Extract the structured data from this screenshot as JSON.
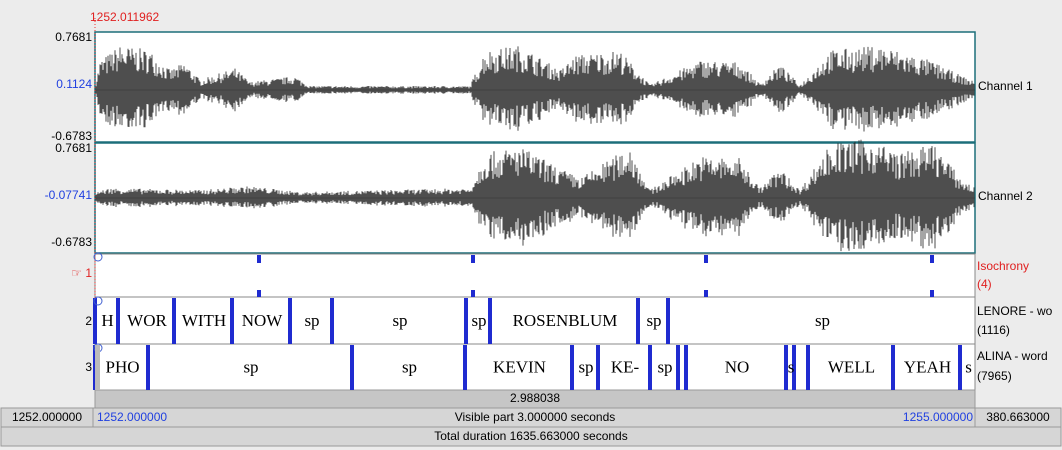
{
  "cursor_time": "1252.011962",
  "channels": [
    {
      "max": "0.7681",
      "mid": "0.1124",
      "min": "-0.6783",
      "name": "Channel 1"
    },
    {
      "max": "0.7681",
      "mid": "-0.07741",
      "min": "-0.6783",
      "name": "Channel 2"
    }
  ],
  "tiers": [
    {
      "number": "☞ 1",
      "name": "Isochrony",
      "count": "(4)"
    },
    {
      "number": "2",
      "name": "LENORE - wo",
      "count": "(1116)",
      "intervals": [
        "H",
        "WOR",
        "WITH",
        "NOW",
        "sp",
        "sp",
        "sp",
        "ROSENBLUM",
        "sp",
        "sp"
      ]
    },
    {
      "number": "3",
      "name": "ALINA - word",
      "count": "(7965)",
      "intervals": [
        "PHO",
        "sp",
        "sp",
        "KEVIN",
        "sp",
        "KE-",
        "sp",
        "NO",
        "s",
        "WELL",
        "YEAH",
        "s"
      ]
    }
  ],
  "selection_duration": "2.988038",
  "window": {
    "left_total": "1252.000000",
    "start": "1252.000000",
    "visible": "Visible part 3.000000 seconds",
    "end": "1255.000000",
    "right_total": "380.663000"
  },
  "total": "Total duration 1635.663000 seconds"
}
